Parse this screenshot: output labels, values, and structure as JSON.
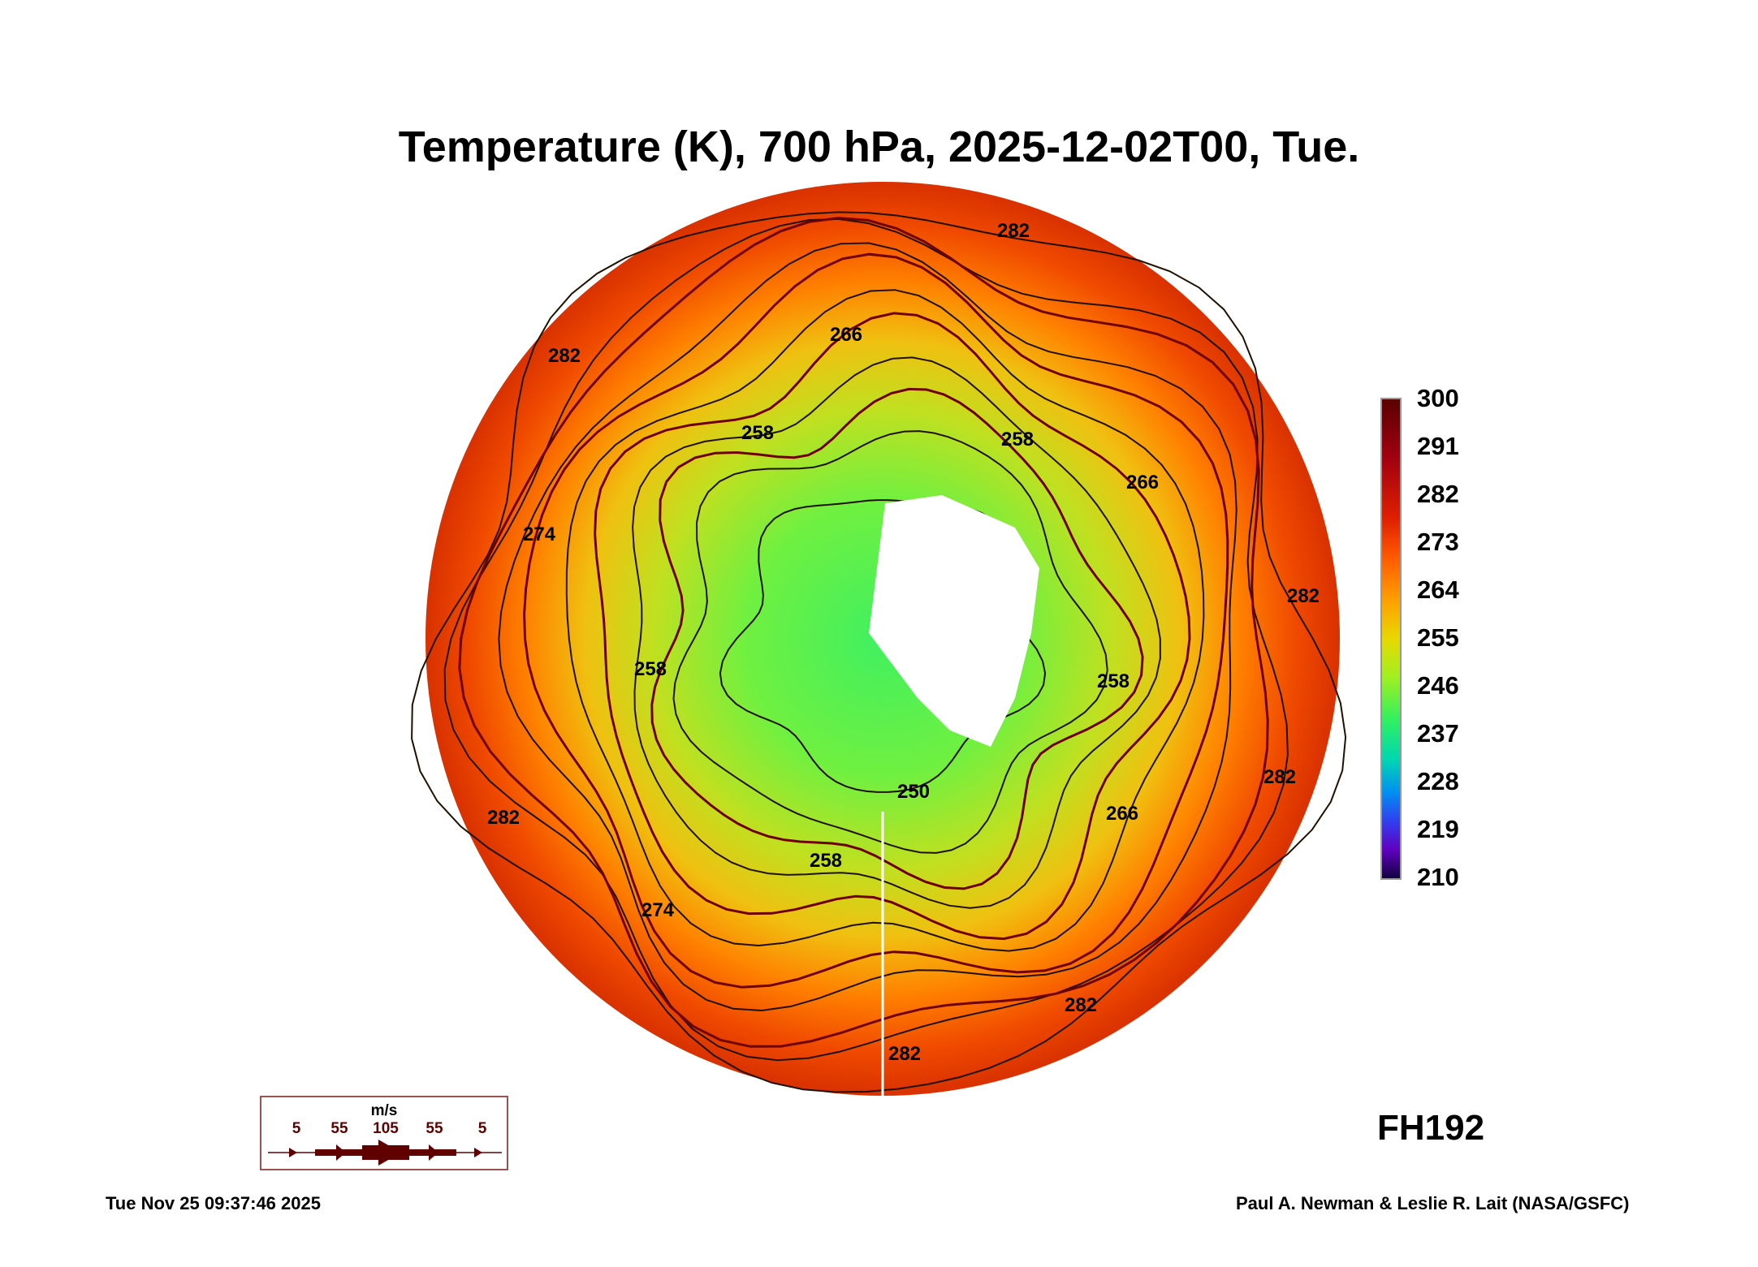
{
  "chart_data": {
    "type": "heatmap",
    "title": "Temperature (K), 700 hPa, 2025-12-02T00, Tue.",
    "projection": "south polar stereographic",
    "colorbar": {
      "ticks": [
        "300",
        "291",
        "282",
        "273",
        "264",
        "255",
        "246",
        "237",
        "228",
        "219",
        "210"
      ],
      "range": [
        210,
        300
      ]
    },
    "contour_labels": [
      "282",
      "282",
      "282",
      "282",
      "282",
      "282",
      "282",
      "274",
      "274",
      "266",
      "266",
      "266",
      "258",
      "258",
      "258",
      "258",
      "258",
      "250"
    ],
    "wind_legend": {
      "unit": "m/s",
      "values": [
        "5",
        "55",
        "105",
        "55",
        "5"
      ]
    },
    "forecast_hour": "FH192"
  },
  "footer": {
    "timestamp": "Tue Nov 25 09:37:46 2025",
    "credit": "Paul A. Newman & Leslie R. Lait (NASA/GSFC)"
  },
  "colors": {
    "outer": "#e83a00",
    "mid": "#ffa000",
    "inner": "#60f040",
    "land": "#ffffff"
  }
}
